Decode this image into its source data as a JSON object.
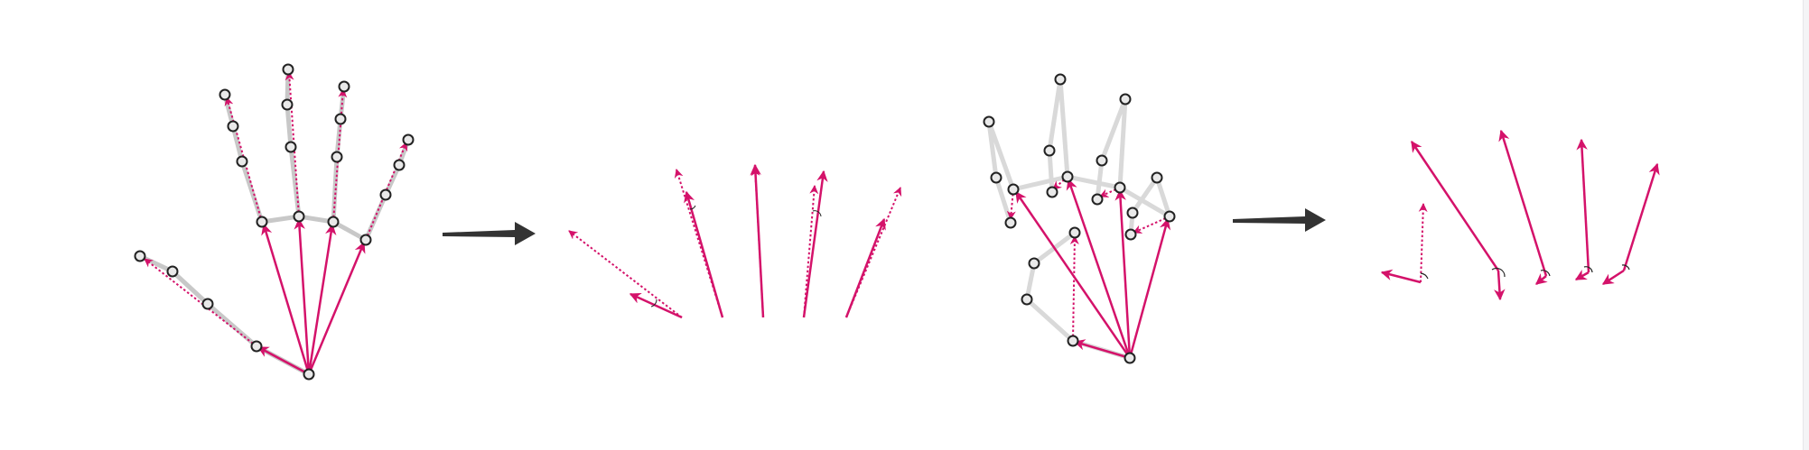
{
  "colors": {
    "vector": "#d4126a",
    "skeleton": "#c8c8c8",
    "joint_fill": "#e9e9e9",
    "joint_stroke": "#222222",
    "arrow": "#333333",
    "background": "#ffffff"
  },
  "panels": [
    {
      "name": "hand-open-keypoints",
      "kind": "hand-skeleton-with-vectors"
    },
    {
      "name": "open-hand-vectors",
      "kind": "normalized-bone-vectors"
    },
    {
      "name": "hand-curled-keypoints",
      "kind": "hand-skeleton-with-vectors"
    },
    {
      "name": "curled-hand-vectors",
      "kind": "normalized-bone-vectors"
    }
  ],
  "transitions": [
    {
      "name": "transform-arrow-1",
      "icon": "right-arrow-icon"
    },
    {
      "name": "transform-arrow-2",
      "icon": "right-arrow-icon"
    }
  ]
}
